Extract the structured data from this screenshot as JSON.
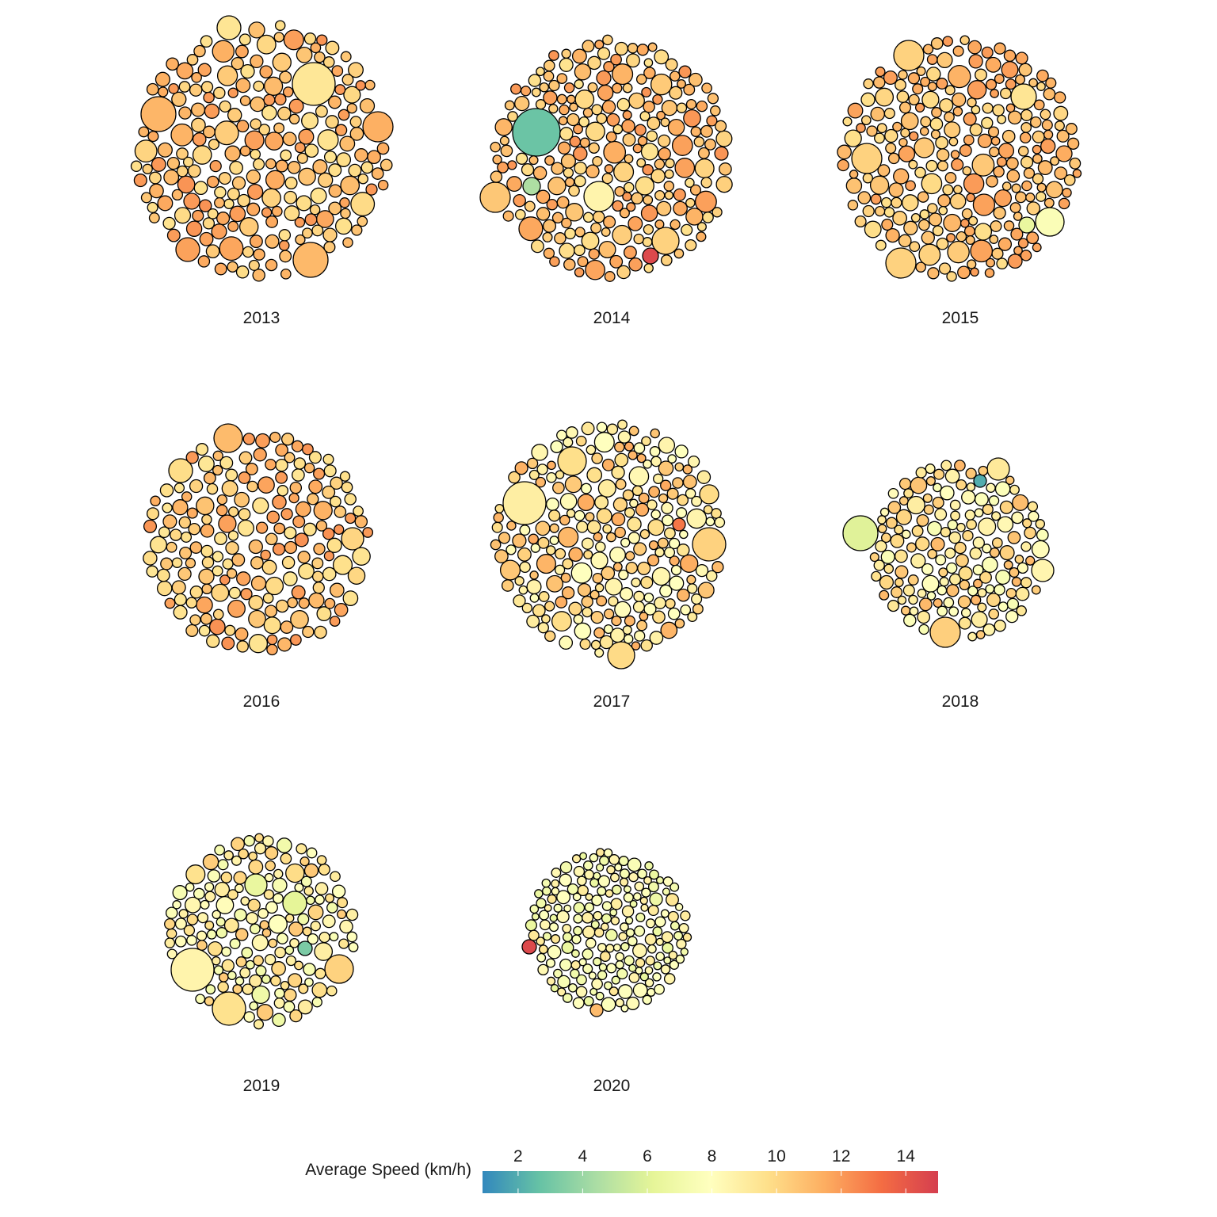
{
  "chart_data": {
    "type": "packed-bubble",
    "title": "",
    "panels": [
      {
        "label": "2013",
        "speed_profile": "mostly 10-12 km/h",
        "outliers": []
      },
      {
        "label": "2014",
        "speed_profile": "mostly 10-12 km/h",
        "outliers": [
          {
            "speed": 2.8,
            "note": "large bubble"
          },
          {
            "speed": 4.5
          },
          {
            "speed": 14.5
          }
        ]
      },
      {
        "label": "2015",
        "speed_profile": "mostly 10-12 km/h",
        "outliers": [
          {
            "speed": 6.5
          }
        ]
      },
      {
        "label": "2016",
        "speed_profile": "mostly 9.5-12 km/h",
        "outliers": []
      },
      {
        "label": "2017",
        "speed_profile": "mostly 8-11 km/h",
        "outliers": [
          {
            "speed": 13
          }
        ]
      },
      {
        "label": "2018",
        "speed_profile": "mostly 8-11 km/h",
        "outliers": [
          {
            "speed": 6,
            "note": "large bubble"
          },
          {
            "speed": 2
          }
        ]
      },
      {
        "label": "2019",
        "speed_profile": "mostly 7-10 km/h",
        "outliers": [
          {
            "speed": 6
          },
          {
            "speed": 3
          }
        ]
      },
      {
        "label": "2020",
        "speed_profile": "mostly 6.5-9 km/h",
        "outliers": [
          {
            "speed": 14.5
          }
        ]
      }
    ],
    "legend": {
      "title": "Average Speed (km/h)",
      "ticks": [
        "2",
        "4",
        "6",
        "8",
        "10",
        "12",
        "14"
      ],
      "tick_values": [
        2,
        4,
        6,
        8,
        10,
        12,
        14
      ],
      "range": [
        0.9,
        15.0
      ],
      "palette": "Spectral",
      "stops": [
        "#3288bd",
        "#66c2a5",
        "#abdda4",
        "#e6f598",
        "#ffffbf",
        "#fee08b",
        "#fdae61",
        "#f46d43",
        "#d53e4f"
      ]
    }
  }
}
